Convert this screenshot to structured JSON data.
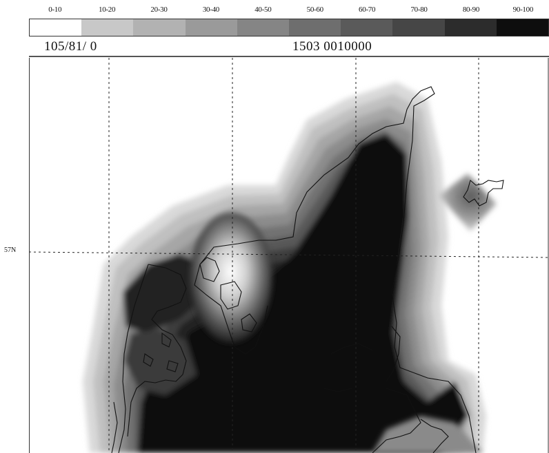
{
  "legend": {
    "labels": [
      "0-10",
      "10-20",
      "20-30",
      "30-40",
      "40-50",
      "50-60",
      "60-70",
      "70-80",
      "80-90",
      "90-100"
    ],
    "colors": [
      "#ffffff",
      "#c8c8c8",
      "#b2b2b2",
      "#9a9a9a",
      "#858585",
      "#6e6e6e",
      "#5a5a5a",
      "#464646",
      "#2c2c2c",
      "#0e0e0e"
    ]
  },
  "info": {
    "left": "105/81/ 0",
    "right": "1503   0010000"
  },
  "map": {
    "lat_label": "57N"
  }
}
